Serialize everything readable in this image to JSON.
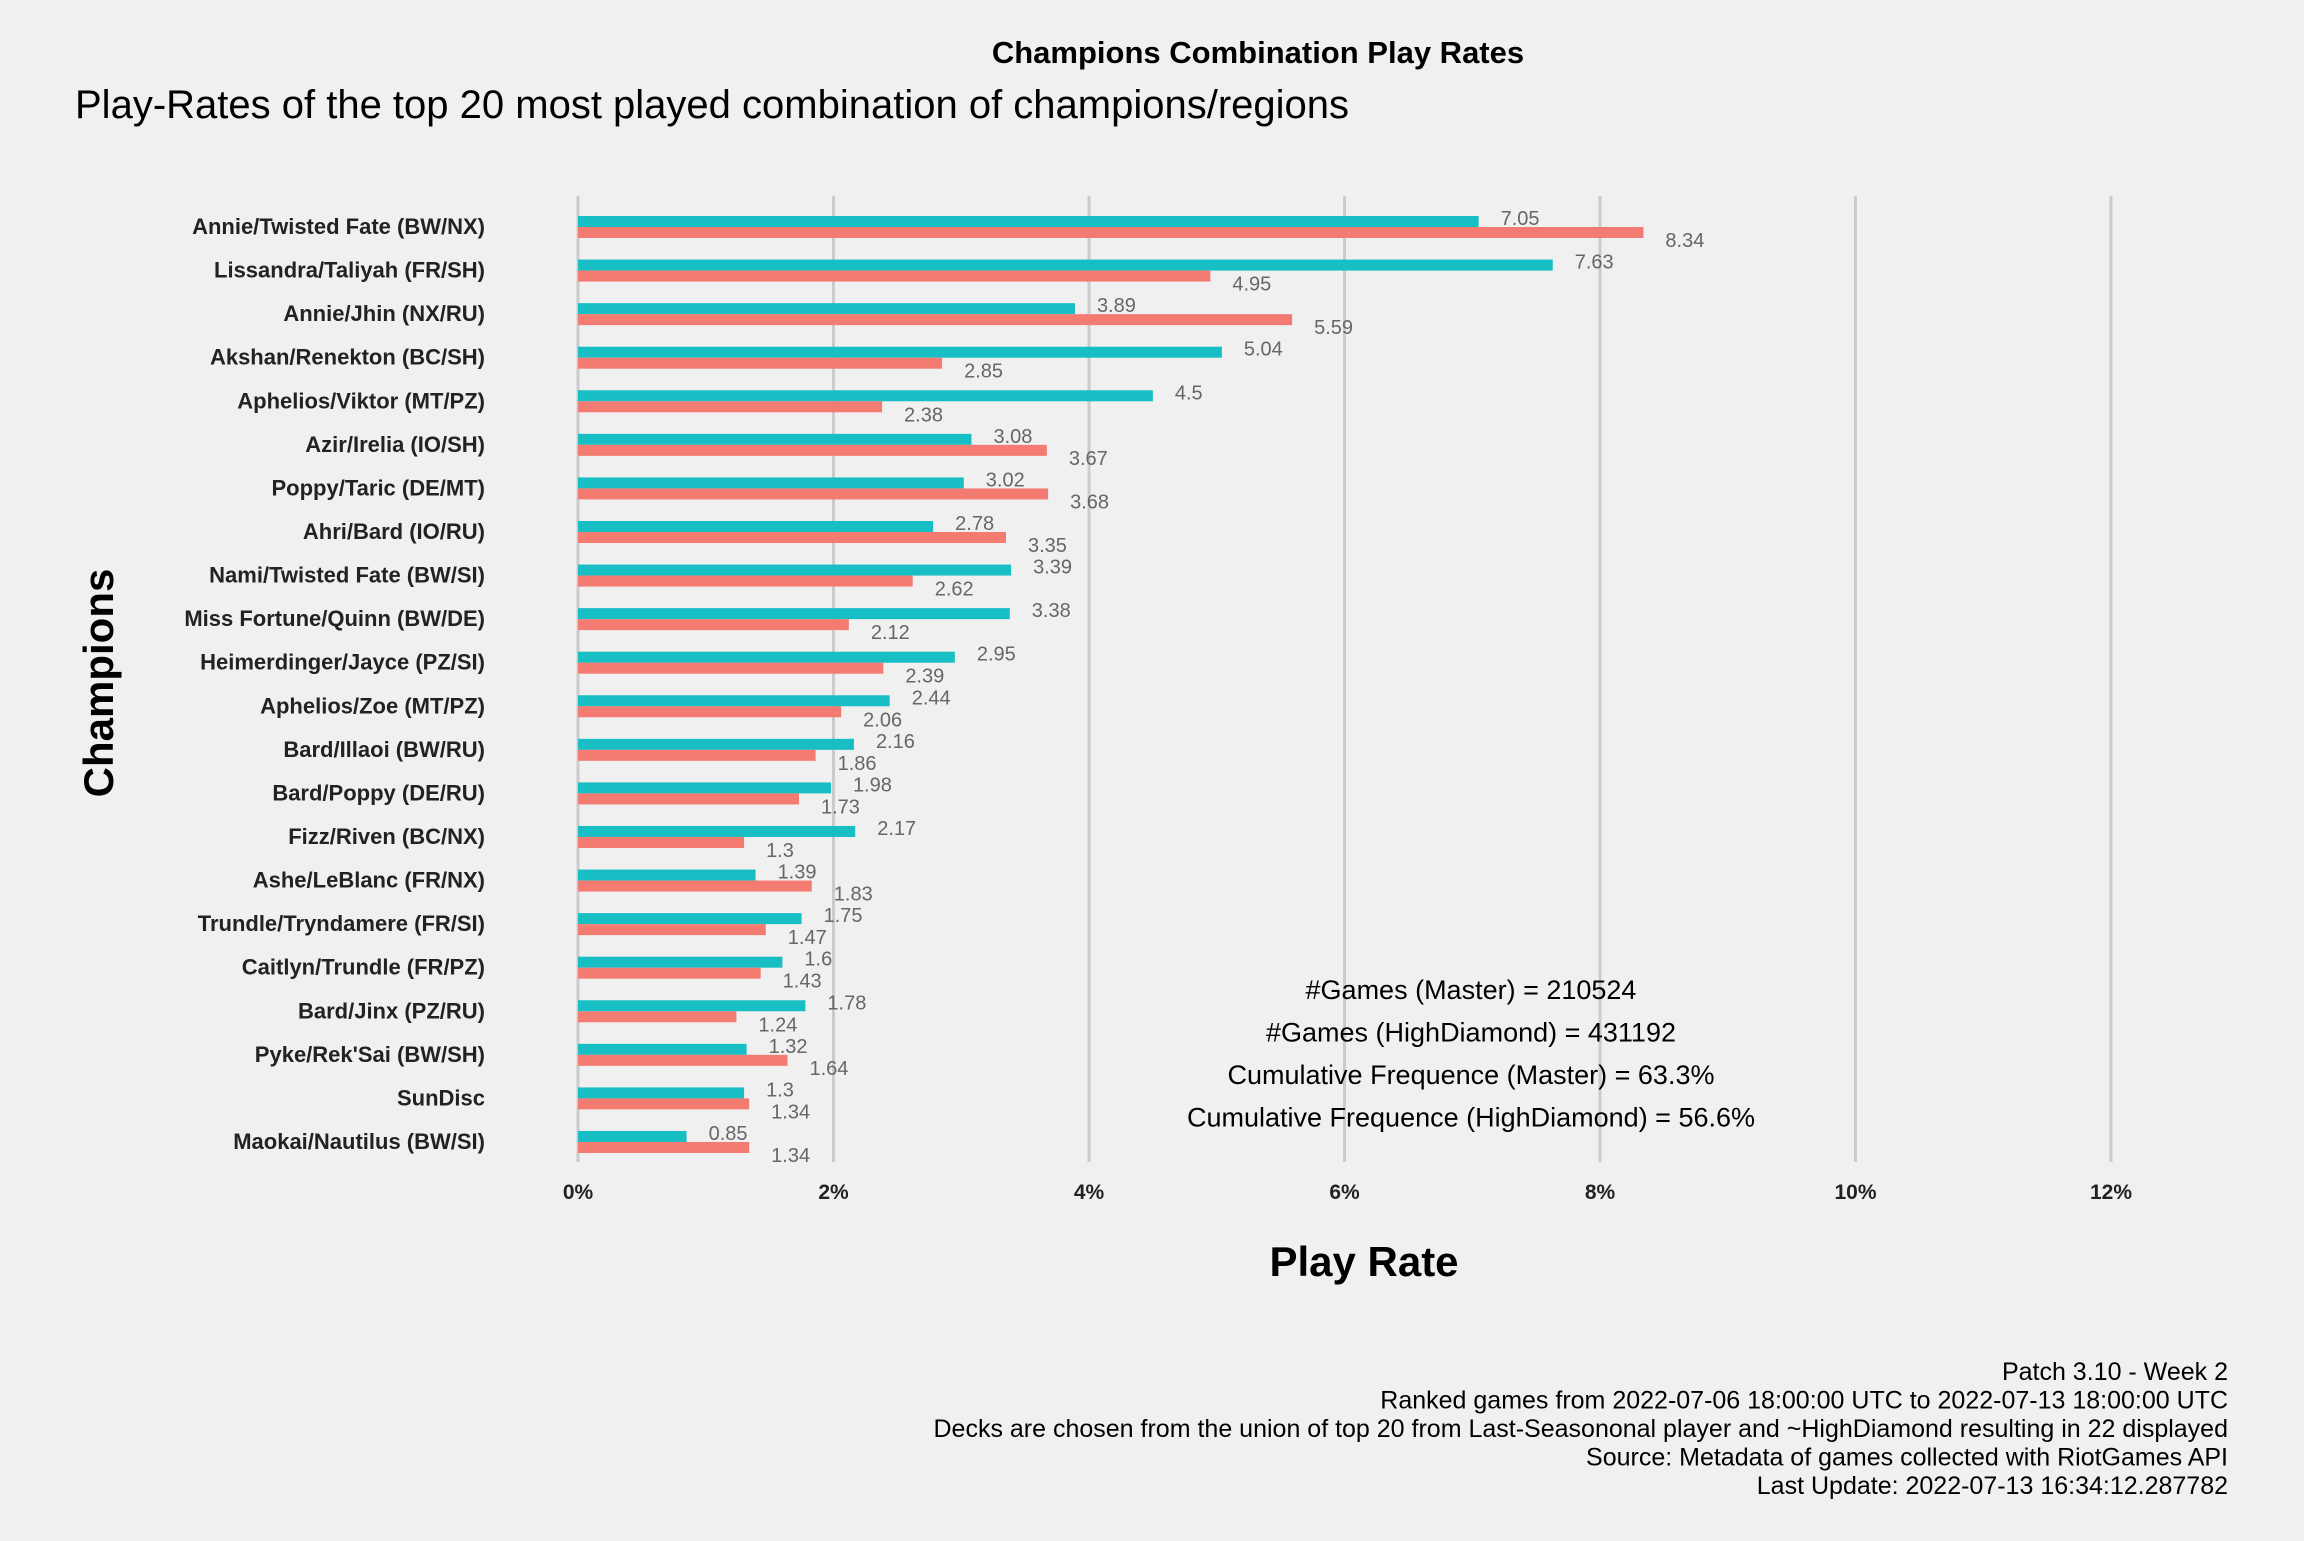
{
  "chart_data": {
    "type": "bar",
    "orientation": "horizontal",
    "title": "Champions Combination Play Rates",
    "subtitle": "Play-Rates of the top 20 most played combination of champions/regions",
    "xlabel": "Play Rate",
    "ylabel": "Champions",
    "xlim": [
      0,
      12
    ],
    "xticks": [
      "0%",
      "2%",
      "4%",
      "6%",
      "8%",
      "10%",
      "12%"
    ],
    "grid": "vertical major gridlines",
    "legend": "none",
    "colors": [
      "#17bec4",
      "#f47b72"
    ],
    "categories": [
      "Annie/Twisted Fate (BW/NX)",
      "Lissandra/Taliyah (FR/SH)",
      "Annie/Jhin (NX/RU)",
      "Akshan/Renekton (BC/SH)",
      "Aphelios/Viktor (MT/PZ)",
      "Azir/Irelia (IO/SH)",
      "Poppy/Taric (DE/MT)",
      "Ahri/Bard (IO/RU)",
      "Nami/Twisted Fate (BW/SI)",
      "Miss Fortune/Quinn (BW/DE)",
      "Heimerdinger/Jayce (PZ/SI)",
      "Aphelios/Zoe (MT/PZ)",
      "Bard/Illaoi (BW/RU)",
      "Bard/Poppy (DE/RU)",
      "Fizz/Riven (BC/NX)",
      "Ashe/LeBlanc (FR/NX)",
      "Trundle/Tryndamere (FR/SI)",
      "Caitlyn/Trundle (FR/PZ)",
      "Bard/Jinx (PZ/RU)",
      "Pyke/Rek'Sai (BW/SH)",
      "SunDisc",
      "Maokai/Nautilus (BW/SI)"
    ],
    "series": [
      {
        "color": "#17bec4",
        "values": [
          7.05,
          7.63,
          3.89,
          5.04,
          4.5,
          3.08,
          3.02,
          2.78,
          3.39,
          3.38,
          2.95,
          2.44,
          2.16,
          1.98,
          2.17,
          1.39,
          1.75,
          1.6,
          1.78,
          1.32,
          1.3,
          0.85
        ],
        "labels": [
          "7.05",
          "7.63",
          "3.89",
          "5.04",
          "4.5",
          "3.08",
          "3.02",
          "2.78",
          "3.39",
          "3.38",
          "2.95",
          "2.44",
          "2.16",
          "1.98",
          "2.17",
          "1.39",
          "1.75",
          "1.6",
          "1.78",
          "1.32",
          "1.3",
          "0.85"
        ]
      },
      {
        "color": "#f47b72",
        "values": [
          8.34,
          4.95,
          5.59,
          2.85,
          2.38,
          3.67,
          3.68,
          3.35,
          2.62,
          2.12,
          2.39,
          2.06,
          1.86,
          1.73,
          1.3,
          1.83,
          1.47,
          1.43,
          1.24,
          1.64,
          1.34,
          1.34
        ],
        "labels": [
          "8.34",
          "4.95",
          "5.59",
          "2.85",
          "2.38",
          "3.67",
          "3.68",
          "3.35",
          "2.62",
          "2.12",
          "2.39",
          "2.06",
          "1.86",
          "1.73",
          "1.3",
          "1.83",
          "1.47",
          "1.43",
          "1.24",
          "1.64",
          "1.34",
          "1.34"
        ]
      }
    ],
    "annotations": [
      "#Games (Master) = 210524",
      "#Games (HighDiamond) = 431192",
      "Cumulative Frequence (Master) = 63.3%",
      "Cumulative Frequence (HighDiamond) = 56.6%"
    ],
    "caption": [
      "Patch 3.10 - Week 2",
      "Ranked games from 2022-07-06 18:00:00 UTC to 2022-07-13 18:00:00 UTC",
      "Decks are chosen from the union of top 20 from Last-Seasononal player and ~HighDiamond resulting in 22 displayed",
      "Source: Metadata of games collected with RiotGames API",
      "Last Update: 2022-07-13 16:34:12.287782"
    ]
  }
}
